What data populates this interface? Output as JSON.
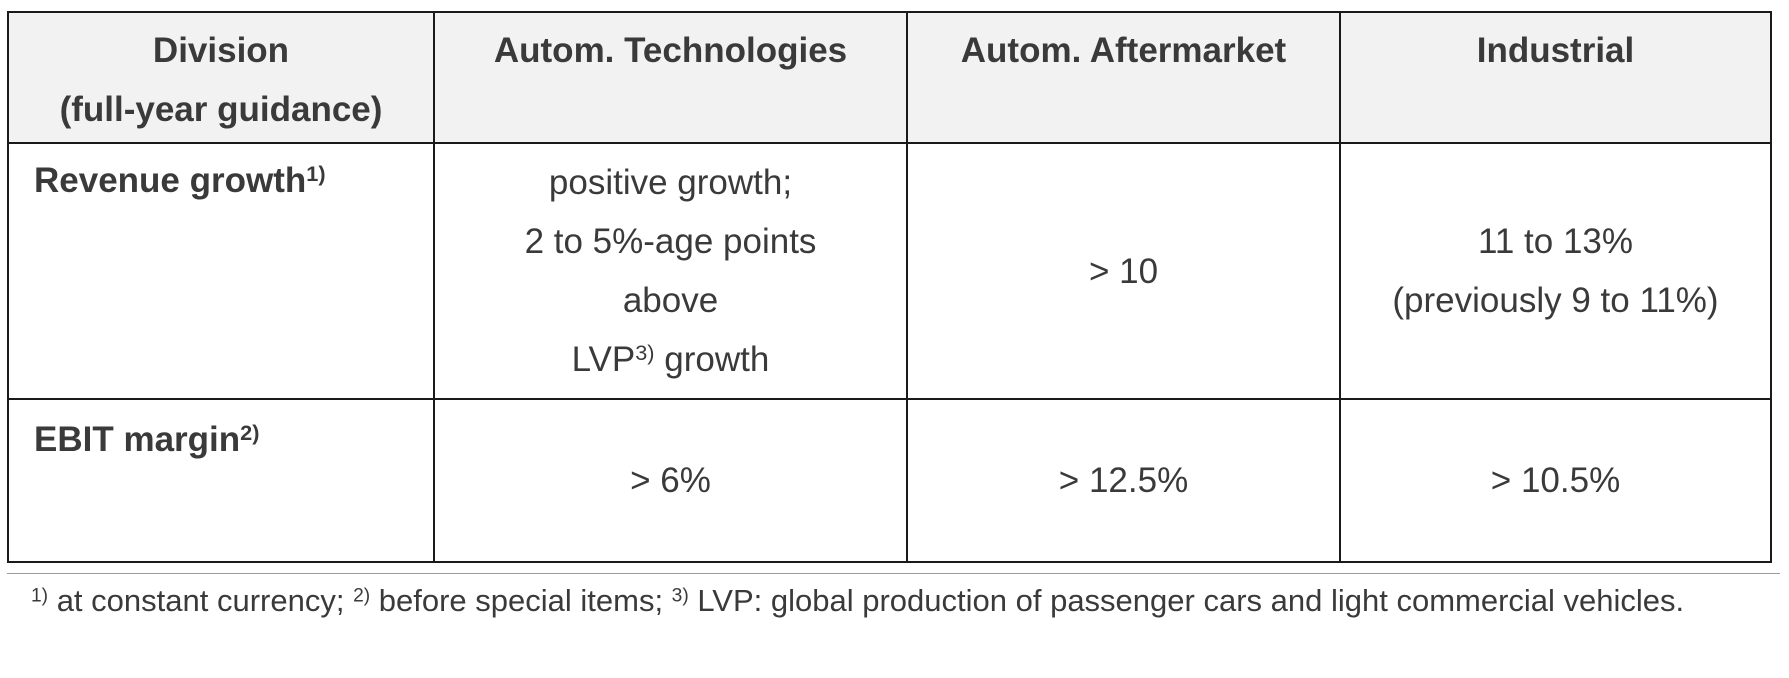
{
  "table": {
    "headers": [
      {
        "lines": [
          "Division",
          "(full-year guidance)"
        ]
      },
      {
        "lines": [
          "Autom. Technologies"
        ]
      },
      {
        "lines": [
          "Autom. Aftermarket"
        ]
      },
      {
        "lines": [
          "Industrial"
        ]
      }
    ],
    "rows": [
      {
        "label": "Revenue growth",
        "label_sup": "1)",
        "cells": [
          {
            "lines": [
              "positive growth;",
              "2 to 5%-age points",
              "above"
            ],
            "last_pre": "LVP",
            "last_sup": "3)",
            "last_post": " growth"
          },
          {
            "lines": [
              "> 10"
            ]
          },
          {
            "lines": [
              "11 to 13%",
              "(previously 9 to 11%)"
            ]
          }
        ]
      },
      {
        "label": "EBIT margin",
        "label_sup": "2)",
        "cells": [
          {
            "lines": [
              "> 6%"
            ]
          },
          {
            "lines": [
              "> 12.5%"
            ]
          },
          {
            "lines": [
              "> 10.5%"
            ]
          }
        ]
      }
    ]
  },
  "footnotes": {
    "sup1": "1)",
    "text1": " at constant currency; ",
    "sup2": "2)",
    "text2": " before special items; ",
    "sup3": "3)",
    "text3": " LVP: global production of passenger cars and light commercial vehicles."
  }
}
